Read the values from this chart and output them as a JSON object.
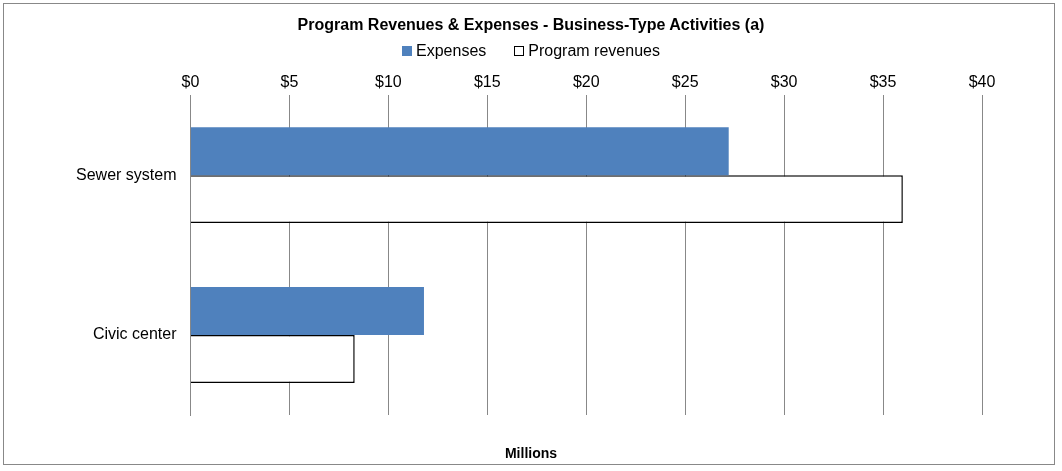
{
  "chart_data": {
    "type": "bar",
    "orientation": "horizontal",
    "title": "Program Revenues & Expenses - Business-Type Activities (a)",
    "xlabel": "Millions",
    "categories": [
      "Sewer system",
      "Civic center"
    ],
    "series": [
      {
        "name": "Expenses",
        "color": "#4f81bd",
        "values": [
          27.2,
          11.8
        ]
      },
      {
        "name": "Program revenues",
        "color": "#ffffff",
        "values": [
          36.0,
          8.3
        ]
      }
    ],
    "xlim": [
      0,
      40
    ],
    "xticks": [
      {
        "value": 0,
        "label": "$0"
      },
      {
        "value": 5,
        "label": "$5"
      },
      {
        "value": 10,
        "label": "$10"
      },
      {
        "value": 15,
        "label": "$15"
      },
      {
        "value": 20,
        "label": "$20"
      },
      {
        "value": 25,
        "label": "$25"
      },
      {
        "value": 30,
        "label": "$30"
      },
      {
        "value": 35,
        "label": "$35"
      },
      {
        "value": 40,
        "label": "$40"
      }
    ],
    "grid": "x",
    "legend": "top"
  }
}
